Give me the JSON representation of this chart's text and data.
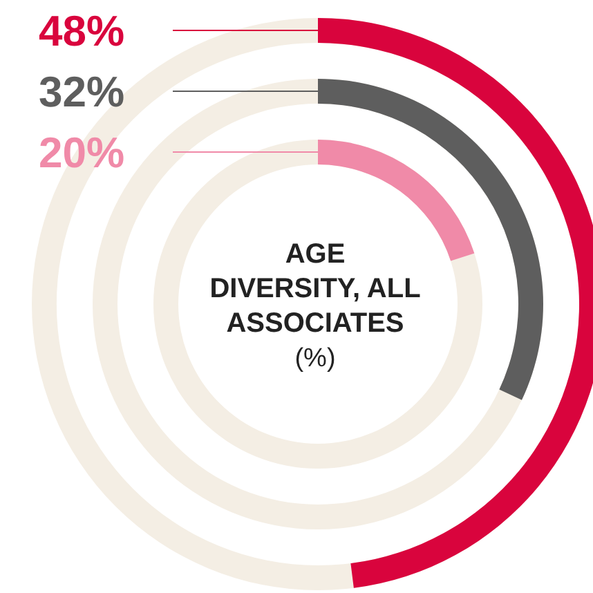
{
  "chart_data": {
    "type": "other",
    "title": "AGE\nDIVERSITY, ALL\nASSOCIATES",
    "subtitle": "(%)",
    "categories": [
      null,
      null,
      null
    ],
    "values": [
      48,
      32,
      20
    ],
    "value_labels": [
      "48%",
      "32%",
      "20%"
    ],
    "colors": [
      "#d9043d",
      "#5e5e5e",
      "#f08aa8"
    ]
  }
}
